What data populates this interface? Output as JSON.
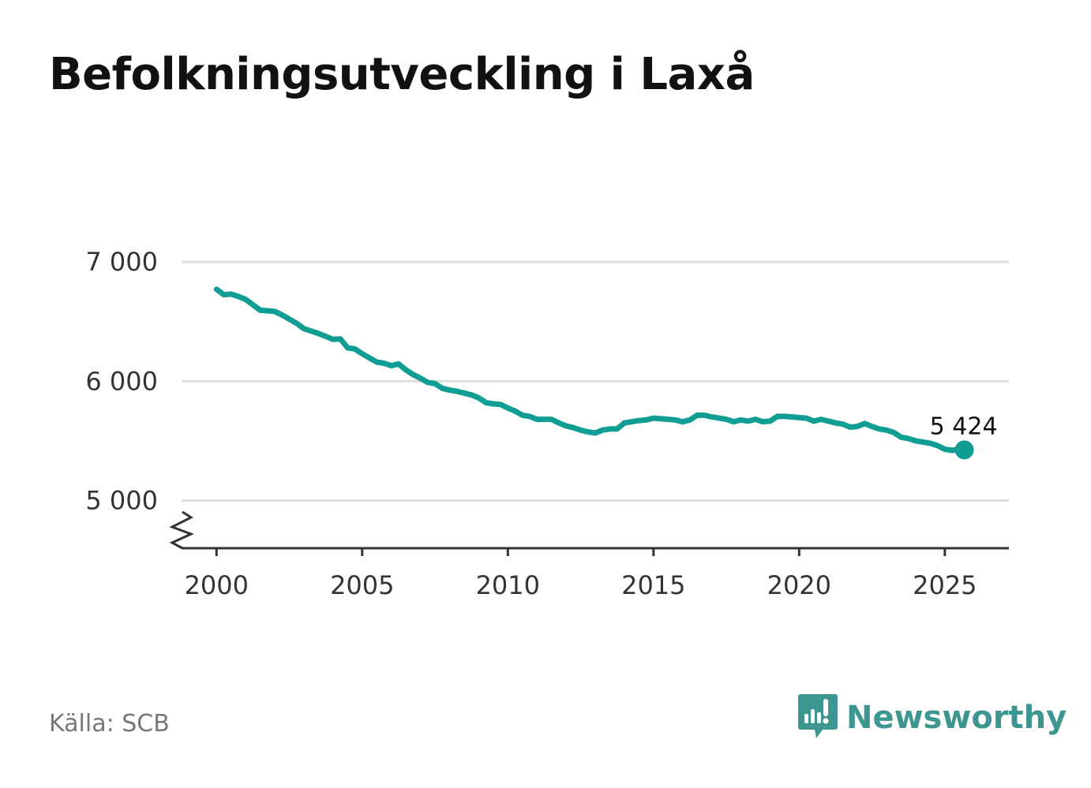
{
  "title": "Befolkningsutveckling i Laxå",
  "source": "Källa: SCB",
  "brand": {
    "name": "Newsworthy",
    "icon": "newsworthy-logo-icon",
    "color": "#3e9690"
  },
  "line_color": "#109e94",
  "chart_data": {
    "type": "line",
    "title": "Befolkningsutveckling i Laxå",
    "xlabel": "",
    "ylabel": "",
    "x_ticks": [
      2000,
      2005,
      2010,
      2015,
      2020,
      2025
    ],
    "y_ticks": [
      5000,
      6000,
      7000
    ],
    "y_tick_labels": [
      "5 000",
      "6 000",
      "7 000"
    ],
    "x_tick_labels": [
      "2000",
      "2005",
      "2010",
      "2015",
      "2020",
      "2025"
    ],
    "xlim": [
      1998.8,
      2027.2
    ],
    "ylim": [
      4600,
      7000
    ],
    "y_axis_break": true,
    "grid": true,
    "end_label": "5 424",
    "series": [
      {
        "x": [
          2000.0,
          2000.25,
          2000.5,
          2000.75,
          2001.0,
          2001.25,
          2001.5,
          2001.75,
          2002.0,
          2002.25,
          2002.5,
          2002.75,
          2003.0,
          2003.25,
          2003.5,
          2003.75,
          2004.0,
          2004.25,
          2004.5,
          2004.75,
          2005.0,
          2005.25,
          2005.5,
          2005.75,
          2006.0,
          2006.25,
          2006.5,
          2006.75,
          2007.0,
          2007.25,
          2007.5,
          2007.75,
          2008.0,
          2008.25,
          2008.5,
          2008.75,
          2009.0,
          2009.25,
          2009.5,
          2009.75,
          2010.0,
          2010.25,
          2010.5,
          2010.75,
          2011.0,
          2011.25,
          2011.5,
          2011.75,
          2012.0,
          2012.25,
          2012.5,
          2012.75,
          2013.0,
          2013.25,
          2013.5,
          2013.75,
          2014.0,
          2014.25,
          2014.5,
          2014.75,
          2015.0,
          2015.25,
          2015.5,
          2015.75,
          2016.0,
          2016.25,
          2016.5,
          2016.75,
          2017.0,
          2017.25,
          2017.5,
          2017.75,
          2018.0,
          2018.25,
          2018.5,
          2018.75,
          2019.0,
          2019.25,
          2019.5,
          2019.75,
          2020.0,
          2020.25,
          2020.5,
          2020.75,
          2021.0,
          2021.25,
          2021.5,
          2021.75,
          2022.0,
          2022.25,
          2022.5,
          2022.75,
          2023.0,
          2023.25,
          2023.5,
          2023.75,
          2024.0,
          2024.25,
          2024.5,
          2024.75,
          2025.0,
          2025.25,
          2025.5,
          2025.67
        ],
        "values": [
          6770,
          6725,
          6730,
          6710,
          6685,
          6640,
          6595,
          6590,
          6585,
          6555,
          6520,
          6485,
          6440,
          6420,
          6400,
          6375,
          6350,
          6355,
          6280,
          6270,
          6230,
          6195,
          6160,
          6150,
          6130,
          6145,
          6095,
          6055,
          6025,
          5990,
          5980,
          5940,
          5925,
          5915,
          5900,
          5885,
          5860,
          5820,
          5810,
          5805,
          5775,
          5750,
          5715,
          5705,
          5680,
          5680,
          5680,
          5650,
          5625,
          5610,
          5590,
          5575,
          5565,
          5590,
          5600,
          5600,
          5650,
          5660,
          5670,
          5675,
          5690,
          5685,
          5680,
          5675,
          5660,
          5675,
          5715,
          5715,
          5700,
          5690,
          5680,
          5660,
          5675,
          5665,
          5680,
          5660,
          5665,
          5705,
          5705,
          5700,
          5695,
          5690,
          5665,
          5680,
          5665,
          5650,
          5640,
          5615,
          5620,
          5645,
          5620,
          5600,
          5590,
          5570,
          5530,
          5520,
          5500,
          5490,
          5480,
          5460,
          5430,
          5420,
          5430,
          5424
        ]
      }
    ]
  }
}
